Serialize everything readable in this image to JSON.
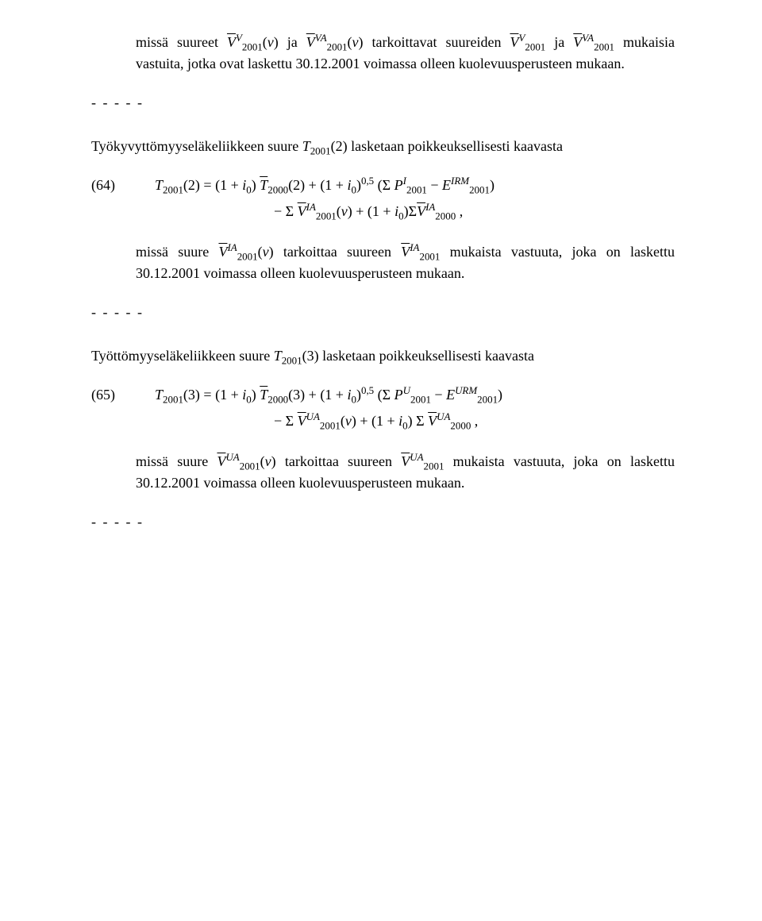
{
  "p1": {
    "pre": "missä suureet ",
    "sym1_base": "V",
    "sym1_sup": "V",
    "sym1_sub": "2001",
    "arg_open": "(",
    "arg_v": "v",
    "arg_close": ")",
    "ja1": " ja ",
    "sym2_base": "V",
    "sym2_sup": "VA",
    "sym2_sub": "2001",
    "mid": " tarkoittavat suureiden ",
    "sym3_base": "V",
    "sym3_sup": "V",
    "sym3_sub": "2001",
    "ja2": " ja ",
    "sym4_base": "V",
    "sym4_sup": "VA",
    "sym4_sub": "2001",
    "tail": "mukaisia vastuita, jotka ovat laskettu 30.12.2001 voimassa olleen kuolevuusperusteen mukaan."
  },
  "dashes": "- - - - -",
  "p2": {
    "pre": "Työkyvyttömyyseläkeliikkeen suure ",
    "T": "T",
    "sub": "2001",
    "arg": "(2)",
    "tail": " lasketaan poikkeuksellisesti kaavasta"
  },
  "eq64": {
    "num": "(64)",
    "lhs_T": "T",
    "lhs_sub": "2001",
    "lhs_arg": "(2)",
    "eq": "  =  ",
    "r1_open": "(1 + ",
    "r1_i": "i",
    "r1_isub": "0",
    "r1_close": ") ",
    "r1_T": "T",
    "r1_Tsub": "2000",
    "r1_Targ": "(2)",
    "plus": " + ",
    "r2_open": "(1 + ",
    "r2_i": "i",
    "r2_isub": "0",
    "r2_close": ")",
    "r2_exp": "0,5",
    "space": " ",
    "sigma_open": "(Σ ",
    "P": "P",
    "P_sup": "I",
    "P_sub": "2001",
    "minus": "  −  ",
    "E": "E",
    "E_sup": "IRM",
    "E_sub": "2001",
    "sigma_close": ")",
    "c_minus": "− Σ ",
    "c_V": "V",
    "c_V_sup": "IA",
    "c_V_sub": "2001",
    "c_arg_open": "(",
    "c_v": "v",
    "c_arg_close": ")",
    "c_plus": " + (1 + ",
    "c_i": "i",
    "c_isub": "0",
    "c_close": ")",
    "c_sigma2": "Σ",
    "c_V2": "V",
    "c_V2_sup": "IA",
    "c_V2_sub": "2000",
    "tailcomma": " ,"
  },
  "p3": {
    "pre": "missä suure ",
    "V": "V",
    "V_sup": "IA",
    "V_sub": "2001",
    "arg_open": "(",
    "arg_v": "v",
    "arg_close": ")",
    "mid": " tarkoittaa suureen ",
    "V2": "V",
    "V2_sup": "IA",
    "V2_sub": "2001",
    "tail": " mukaista vastuuta, joka on laskettu 30.12.2001 voimassa olleen kuolevuusperusteen mukaan."
  },
  "p4": {
    "pre": "Työttömyyseläkeliikkeen suure ",
    "T": "T",
    "sub": "2001",
    "arg": "(3)",
    "tail": " lasketaan poikkeuksellisesti kaavasta"
  },
  "eq65": {
    "num": "(65)",
    "lhs_T": "T",
    "lhs_sub": "2001",
    "lhs_arg": "(3)",
    "eq": "  =  ",
    "r1_open": "(1 + ",
    "r1_i": "i",
    "r1_isub": "0",
    "r1_close": ") ",
    "r1_T": "T",
    "r1_Tsub": "2000",
    "r1_Targ": "(3)",
    "plus": " + ",
    "r2_open": "(1 + ",
    "r2_i": "i",
    "r2_isub": "0",
    "r2_close": ")",
    "r2_exp": "0,5",
    "space": " ",
    "sigma_open": "(Σ ",
    "P": "P",
    "P_sup": "U",
    "P_sub": "2001",
    "minus": "  −  ",
    "E": "E",
    "E_sup": "URM",
    "E_sub": "2001",
    "sigma_close": ")",
    "c_minus": "− Σ ",
    "c_V": "V",
    "c_V_sup": "UA",
    "c_V_sub": "2001",
    "c_arg_open": "(",
    "c_v": "v",
    "c_arg_close": ")",
    "c_plus": " + (1 + ",
    "c_i": "i",
    "c_isub": "0",
    "c_close": ") Σ ",
    "c_V2": "V",
    "c_V2_sup": "UA",
    "c_V2_sub": "2000",
    "tailcomma": " ,"
  },
  "p5": {
    "pre": "missä suure ",
    "V": "V",
    "V_sup": "UA",
    "V_sub": "2001",
    "arg_open": "(",
    "arg_v": "v",
    "arg_close": ")",
    "mid": " tarkoittaa suureen ",
    "V2": "V",
    "V2_sup": "UA",
    "V2_sub": "2001",
    "tail": " mukaista vastuuta, joka on laskettu 30.12.2001 voimassa olleen kuolevuusperusteen mukaan."
  }
}
